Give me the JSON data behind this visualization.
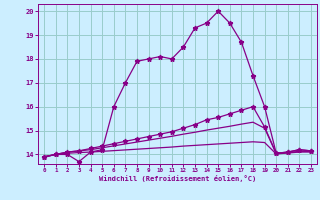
{
  "xlabel": "Windchill (Refroidissement éolien,°C)",
  "bg_color": "#cceeff",
  "line_color": "#880088",
  "grid_color": "#99cccc",
  "xlim": [
    -0.5,
    23.5
  ],
  "ylim": [
    13.6,
    20.3
  ],
  "xticks": [
    0,
    1,
    2,
    3,
    4,
    5,
    6,
    7,
    8,
    9,
    10,
    11,
    12,
    13,
    14,
    15,
    16,
    17,
    18,
    19,
    20,
    21,
    22,
    23
  ],
  "yticks": [
    14,
    15,
    16,
    17,
    18,
    19,
    20
  ],
  "line1_x": [
    0,
    1,
    2,
    3,
    4,
    5,
    6,
    7,
    8,
    9,
    10,
    11,
    12,
    13,
    14,
    15,
    16,
    17,
    18,
    19,
    20,
    21,
    22,
    23
  ],
  "line1_y": [
    13.9,
    14.0,
    14.0,
    13.7,
    14.1,
    14.2,
    16.0,
    17.0,
    17.9,
    18.0,
    18.1,
    18.0,
    18.5,
    19.3,
    19.5,
    20.0,
    19.5,
    18.7,
    17.3,
    16.0,
    14.05,
    14.1,
    14.2,
    14.15
  ],
  "line2_x": [
    0,
    1,
    2,
    3,
    4,
    5,
    6,
    7,
    8,
    9,
    10,
    11,
    12,
    13,
    14,
    15,
    16,
    17,
    18,
    19,
    20,
    21,
    22,
    23
  ],
  "line2_y": [
    13.9,
    14.0,
    14.1,
    14.15,
    14.25,
    14.35,
    14.45,
    14.55,
    14.65,
    14.75,
    14.85,
    14.95,
    15.1,
    15.25,
    15.45,
    15.55,
    15.7,
    15.85,
    16.0,
    15.15,
    14.05,
    14.1,
    14.2,
    14.15
  ],
  "line3_x": [
    0,
    1,
    2,
    3,
    4,
    5,
    6,
    7,
    8,
    9,
    10,
    11,
    12,
    13,
    14,
    15,
    16,
    17,
    18,
    19,
    20,
    21,
    22,
    23
  ],
  "line3_y": [
    13.9,
    14.0,
    14.1,
    14.15,
    14.2,
    14.28,
    14.36,
    14.44,
    14.52,
    14.6,
    14.68,
    14.76,
    14.85,
    14.93,
    15.02,
    15.1,
    15.18,
    15.27,
    15.35,
    15.1,
    14.03,
    14.08,
    14.13,
    14.13
  ],
  "line4_x": [
    0,
    1,
    2,
    3,
    4,
    5,
    6,
    7,
    8,
    9,
    10,
    11,
    12,
    13,
    14,
    15,
    16,
    17,
    18,
    19,
    20,
    21,
    22,
    23
  ],
  "line4_y": [
    13.9,
    14.0,
    14.05,
    14.08,
    14.1,
    14.13,
    14.16,
    14.19,
    14.22,
    14.25,
    14.28,
    14.31,
    14.35,
    14.38,
    14.41,
    14.44,
    14.47,
    14.5,
    14.53,
    14.5,
    14.02,
    14.06,
    14.1,
    14.1
  ]
}
